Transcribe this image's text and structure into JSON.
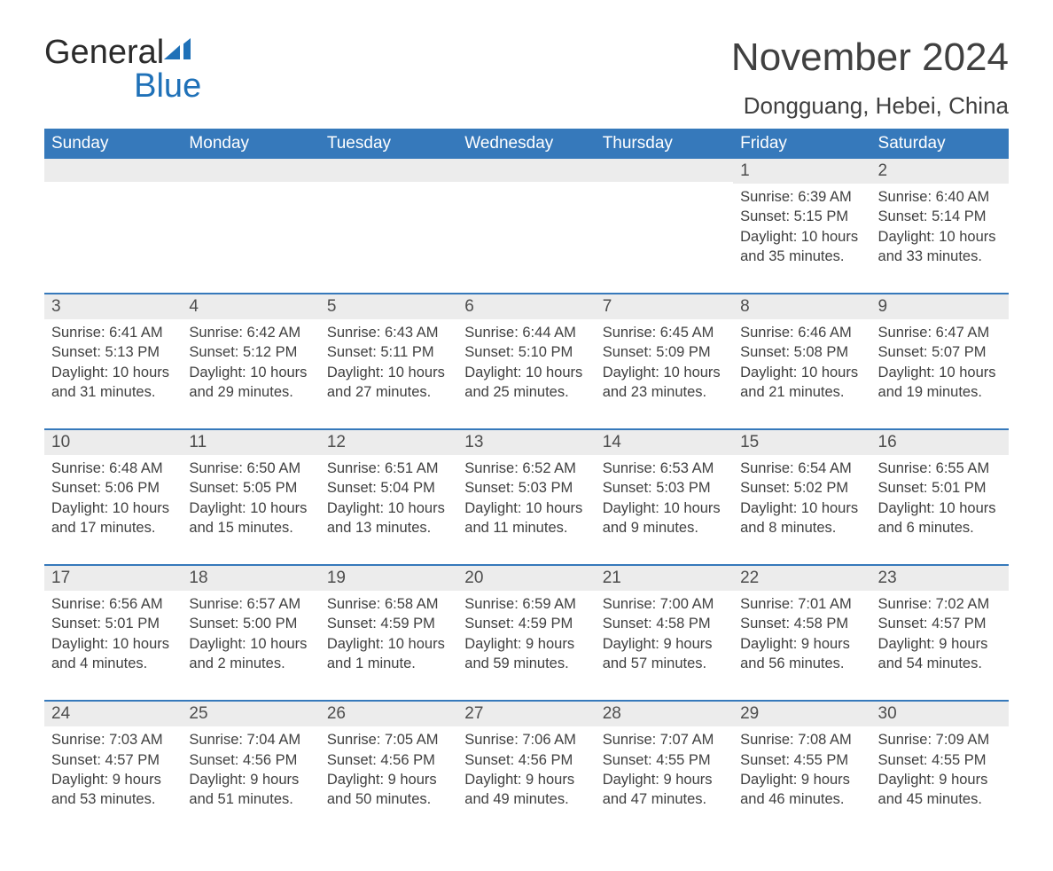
{
  "brand": {
    "line1": "General",
    "line2": "Blue"
  },
  "colors": {
    "header_bg": "#3679bb",
    "header_text": "#ffffff",
    "daynum_bg": "#ececec",
    "row_divider": "#3679bb",
    "text": "#404040",
    "brand_blue": "#1f71b8"
  },
  "title": "November 2024",
  "location": "Dongguang, Hebei, China",
  "weekdays": [
    "Sunday",
    "Monday",
    "Tuesday",
    "Wednesday",
    "Thursday",
    "Friday",
    "Saturday"
  ],
  "cells": [
    {
      "date": "",
      "sunrise": "",
      "sunset": "",
      "daylight": ""
    },
    {
      "date": "",
      "sunrise": "",
      "sunset": "",
      "daylight": ""
    },
    {
      "date": "",
      "sunrise": "",
      "sunset": "",
      "daylight": ""
    },
    {
      "date": "",
      "sunrise": "",
      "sunset": "",
      "daylight": ""
    },
    {
      "date": "",
      "sunrise": "",
      "sunset": "",
      "daylight": ""
    },
    {
      "date": "1",
      "sunrise": "Sunrise: 6:39 AM",
      "sunset": "Sunset: 5:15 PM",
      "daylight": "Daylight: 10 hours and 35 minutes."
    },
    {
      "date": "2",
      "sunrise": "Sunrise: 6:40 AM",
      "sunset": "Sunset: 5:14 PM",
      "daylight": "Daylight: 10 hours and 33 minutes."
    },
    {
      "date": "3",
      "sunrise": "Sunrise: 6:41 AM",
      "sunset": "Sunset: 5:13 PM",
      "daylight": "Daylight: 10 hours and 31 minutes."
    },
    {
      "date": "4",
      "sunrise": "Sunrise: 6:42 AM",
      "sunset": "Sunset: 5:12 PM",
      "daylight": "Daylight: 10 hours and 29 minutes."
    },
    {
      "date": "5",
      "sunrise": "Sunrise: 6:43 AM",
      "sunset": "Sunset: 5:11 PM",
      "daylight": "Daylight: 10 hours and 27 minutes."
    },
    {
      "date": "6",
      "sunrise": "Sunrise: 6:44 AM",
      "sunset": "Sunset: 5:10 PM",
      "daylight": "Daylight: 10 hours and 25 minutes."
    },
    {
      "date": "7",
      "sunrise": "Sunrise: 6:45 AM",
      "sunset": "Sunset: 5:09 PM",
      "daylight": "Daylight: 10 hours and 23 minutes."
    },
    {
      "date": "8",
      "sunrise": "Sunrise: 6:46 AM",
      "sunset": "Sunset: 5:08 PM",
      "daylight": "Daylight: 10 hours and 21 minutes."
    },
    {
      "date": "9",
      "sunrise": "Sunrise: 6:47 AM",
      "sunset": "Sunset: 5:07 PM",
      "daylight": "Daylight: 10 hours and 19 minutes."
    },
    {
      "date": "10",
      "sunrise": "Sunrise: 6:48 AM",
      "sunset": "Sunset: 5:06 PM",
      "daylight": "Daylight: 10 hours and 17 minutes."
    },
    {
      "date": "11",
      "sunrise": "Sunrise: 6:50 AM",
      "sunset": "Sunset: 5:05 PM",
      "daylight": "Daylight: 10 hours and 15 minutes."
    },
    {
      "date": "12",
      "sunrise": "Sunrise: 6:51 AM",
      "sunset": "Sunset: 5:04 PM",
      "daylight": "Daylight: 10 hours and 13 minutes."
    },
    {
      "date": "13",
      "sunrise": "Sunrise: 6:52 AM",
      "sunset": "Sunset: 5:03 PM",
      "daylight": "Daylight: 10 hours and 11 minutes."
    },
    {
      "date": "14",
      "sunrise": "Sunrise: 6:53 AM",
      "sunset": "Sunset: 5:03 PM",
      "daylight": "Daylight: 10 hours and 9 minutes."
    },
    {
      "date": "15",
      "sunrise": "Sunrise: 6:54 AM",
      "sunset": "Sunset: 5:02 PM",
      "daylight": "Daylight: 10 hours and 8 minutes."
    },
    {
      "date": "16",
      "sunrise": "Sunrise: 6:55 AM",
      "sunset": "Sunset: 5:01 PM",
      "daylight": "Daylight: 10 hours and 6 minutes."
    },
    {
      "date": "17",
      "sunrise": "Sunrise: 6:56 AM",
      "sunset": "Sunset: 5:01 PM",
      "daylight": "Daylight: 10 hours and 4 minutes."
    },
    {
      "date": "18",
      "sunrise": "Sunrise: 6:57 AM",
      "sunset": "Sunset: 5:00 PM",
      "daylight": "Daylight: 10 hours and 2 minutes."
    },
    {
      "date": "19",
      "sunrise": "Sunrise: 6:58 AM",
      "sunset": "Sunset: 4:59 PM",
      "daylight": "Daylight: 10 hours and 1 minute."
    },
    {
      "date": "20",
      "sunrise": "Sunrise: 6:59 AM",
      "sunset": "Sunset: 4:59 PM",
      "daylight": "Daylight: 9 hours and 59 minutes."
    },
    {
      "date": "21",
      "sunrise": "Sunrise: 7:00 AM",
      "sunset": "Sunset: 4:58 PM",
      "daylight": "Daylight: 9 hours and 57 minutes."
    },
    {
      "date": "22",
      "sunrise": "Sunrise: 7:01 AM",
      "sunset": "Sunset: 4:58 PM",
      "daylight": "Daylight: 9 hours and 56 minutes."
    },
    {
      "date": "23",
      "sunrise": "Sunrise: 7:02 AM",
      "sunset": "Sunset: 4:57 PM",
      "daylight": "Daylight: 9 hours and 54 minutes."
    },
    {
      "date": "24",
      "sunrise": "Sunrise: 7:03 AM",
      "sunset": "Sunset: 4:57 PM",
      "daylight": "Daylight: 9 hours and 53 minutes."
    },
    {
      "date": "25",
      "sunrise": "Sunrise: 7:04 AM",
      "sunset": "Sunset: 4:56 PM",
      "daylight": "Daylight: 9 hours and 51 minutes."
    },
    {
      "date": "26",
      "sunrise": "Sunrise: 7:05 AM",
      "sunset": "Sunset: 4:56 PM",
      "daylight": "Daylight: 9 hours and 50 minutes."
    },
    {
      "date": "27",
      "sunrise": "Sunrise: 7:06 AM",
      "sunset": "Sunset: 4:56 PM",
      "daylight": "Daylight: 9 hours and 49 minutes."
    },
    {
      "date": "28",
      "sunrise": "Sunrise: 7:07 AM",
      "sunset": "Sunset: 4:55 PM",
      "daylight": "Daylight: 9 hours and 47 minutes."
    },
    {
      "date": "29",
      "sunrise": "Sunrise: 7:08 AM",
      "sunset": "Sunset: 4:55 PM",
      "daylight": "Daylight: 9 hours and 46 minutes."
    },
    {
      "date": "30",
      "sunrise": "Sunrise: 7:09 AM",
      "sunset": "Sunset: 4:55 PM",
      "daylight": "Daylight: 9 hours and 45 minutes."
    }
  ]
}
